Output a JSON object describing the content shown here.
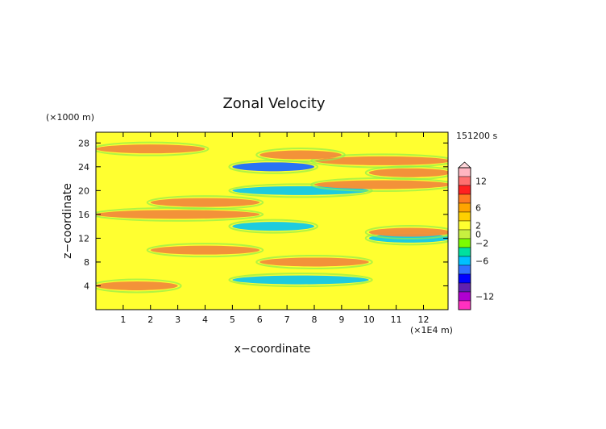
{
  "chart_data": {
    "type": "heatmap",
    "title": "Zonal Velocity",
    "xlabel": "x−coordinate",
    "ylabel": "z−coordinate",
    "x_unit": "(×1E4 m)",
    "y_unit": "(×1000 m)",
    "time_label": "151200 s",
    "xlim": [
      0,
      12.9
    ],
    "ylim": [
      0,
      29.8
    ],
    "x_ticks": [
      "1",
      "2",
      "3",
      "4",
      "5",
      "6",
      "7",
      "8",
      "9",
      "10",
      "11",
      "12"
    ],
    "y_ticks": [
      "4",
      "8",
      "12",
      "16",
      "20",
      "24",
      "28"
    ],
    "colorbar": {
      "tick_labels": [
        "12",
        "6",
        "2",
        "0",
        "−2",
        "−6",
        "−12"
      ],
      "colors": [
        "#ffb6c1",
        "#ff7070",
        "#ff2020",
        "#ff7a20",
        "#ffa500",
        "#ffd000",
        "#ffff30",
        "#c8f040",
        "#7cfc00",
        "#00e0a0",
        "#00c0ff",
        "#3070ff",
        "#0000ff",
        "#6020b0",
        "#b000d0",
        "#ff30c0"
      ]
    },
    "field_description_bands": [
      {
        "z": 4,
        "value": 3,
        "x": [
          0,
          3
        ]
      },
      {
        "z": 5,
        "value": -2,
        "x": [
          5,
          10
        ]
      },
      {
        "z": 8,
        "value": 3,
        "x": [
          6,
          10
        ]
      },
      {
        "z": 10,
        "value": 3,
        "x": [
          2,
          6
        ]
      },
      {
        "z": 12,
        "value": -3,
        "x": [
          10,
          13
        ]
      },
      {
        "z": 13,
        "value": 4,
        "x": [
          10,
          13
        ]
      },
      {
        "z": 14,
        "value": -4,
        "x": [
          5,
          8
        ]
      },
      {
        "z": 16,
        "value": 3,
        "x": [
          0,
          6
        ]
      },
      {
        "z": 18,
        "value": 3,
        "x": [
          2,
          6
        ]
      },
      {
        "z": 20,
        "value": -3,
        "x": [
          5,
          10
        ]
      },
      {
        "z": 21,
        "value": 3,
        "x": [
          8,
          13
        ]
      },
      {
        "z": 23,
        "value": 4,
        "x": [
          10,
          13
        ]
      },
      {
        "z": 24,
        "value": -6,
        "x": [
          5,
          8
        ]
      },
      {
        "z": 25,
        "value": 5,
        "x": [
          8,
          13
        ]
      },
      {
        "z": 26,
        "value": 3,
        "x": [
          6,
          9
        ]
      },
      {
        "z": 27,
        "value": 3,
        "x": [
          0,
          4
        ]
      }
    ]
  }
}
